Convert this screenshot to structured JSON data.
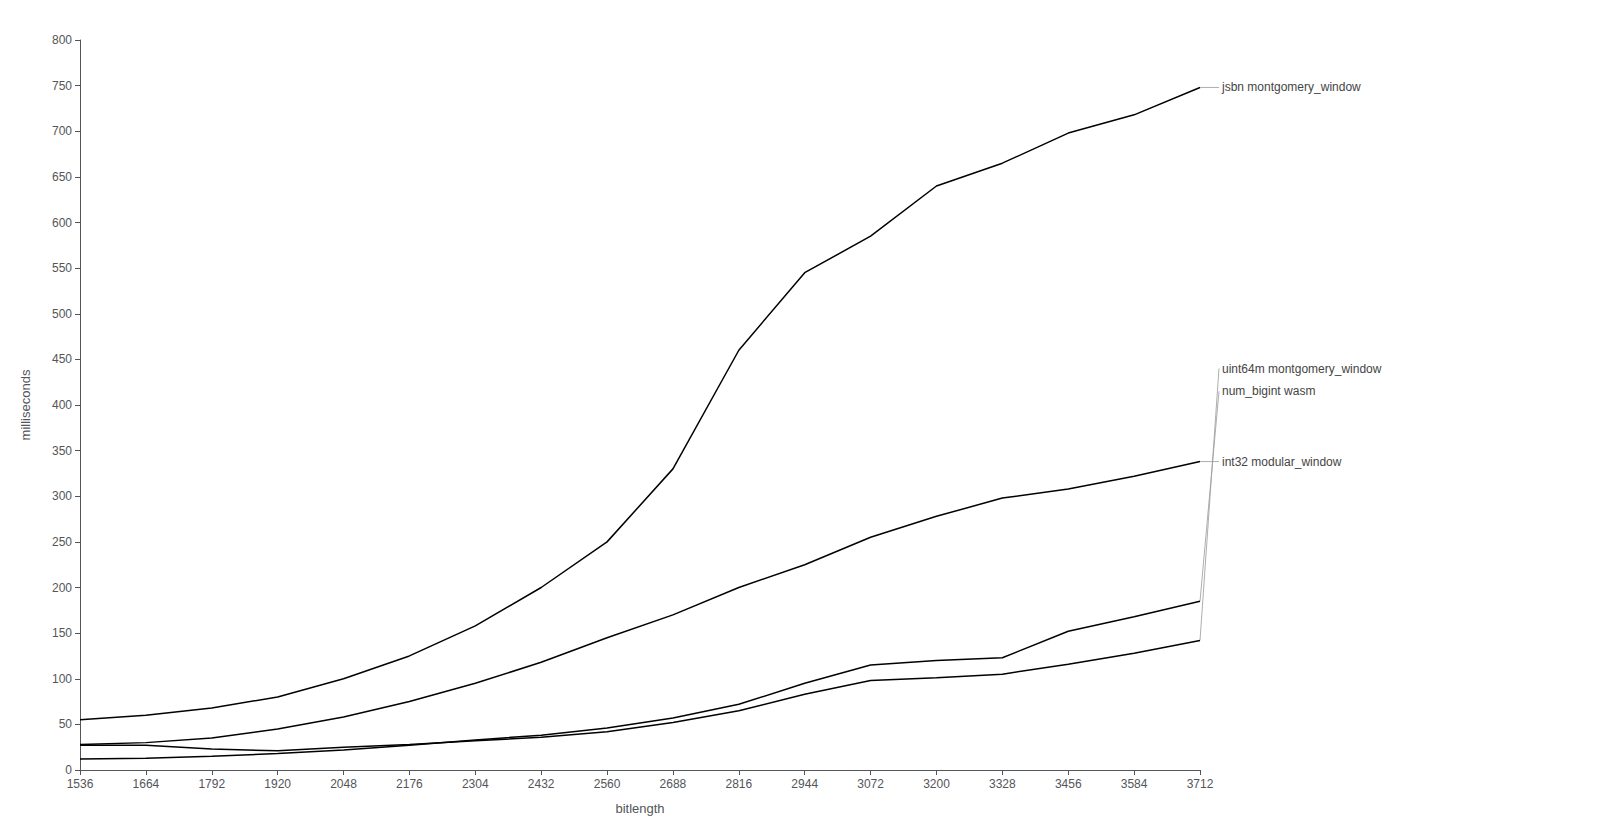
{
  "chart_data": {
    "type": "line",
    "xlabel": "bitlength",
    "ylabel": "milliseconds",
    "x": [
      1536,
      1664,
      1792,
      1920,
      2048,
      2176,
      2304,
      2432,
      2560,
      2688,
      2816,
      2944,
      3072,
      3200,
      3328,
      3456,
      3584,
      3712
    ],
    "series": [
      {
        "name": "jsbn montgomery_window",
        "values": [
          55,
          60,
          68,
          80,
          100,
          125,
          158,
          200,
          250,
          330,
          460,
          545,
          585,
          640,
          665,
          698,
          718,
          748
        ]
      },
      {
        "name": "int32 modular_window",
        "values": [
          28,
          30,
          35,
          45,
          58,
          75,
          95,
          118,
          145,
          170,
          200,
          225,
          255,
          278,
          298,
          308,
          322,
          338
        ]
      },
      {
        "name": "num_bigint wasm",
        "values": [
          12,
          13,
          15,
          18,
          22,
          27,
          33,
          38,
          46,
          57,
          72,
          95,
          115,
          120,
          123,
          152,
          168,
          185
        ]
      },
      {
        "name": "uint64m montgomery_window",
        "values": [
          27,
          27,
          23,
          21,
          25,
          28,
          32,
          36,
          42,
          52,
          65,
          83,
          98,
          101,
          105,
          116,
          128,
          142
        ]
      }
    ],
    "color": "#000000",
    "xlim": [
      1536,
      3712
    ],
    "ylim": [
      0,
      800
    ],
    "xticks": [
      1536,
      1664,
      1792,
      1920,
      2048,
      2176,
      2304,
      2432,
      2560,
      2688,
      2816,
      2944,
      3072,
      3200,
      3328,
      3456,
      3584,
      3712
    ],
    "yticks": [
      0,
      50,
      100,
      150,
      200,
      250,
      300,
      350,
      400,
      450,
      500,
      550,
      600,
      650,
      700,
      750,
      800
    ],
    "grid": false,
    "annotations": [
      {
        "text": "jsbn montgomery_window",
        "x": 3712,
        "y": 748,
        "y_text": 748
      },
      {
        "text": "int32 modular_window",
        "x": 3712,
        "y": 338,
        "y_text": 338
      },
      {
        "text": "num_bigint wasm",
        "x": 3712,
        "y": 185,
        "y_text": 415
      },
      {
        "text": "uint64m montgomery_window",
        "x": 3712,
        "y": 142,
        "y_text": 440
      }
    ]
  }
}
